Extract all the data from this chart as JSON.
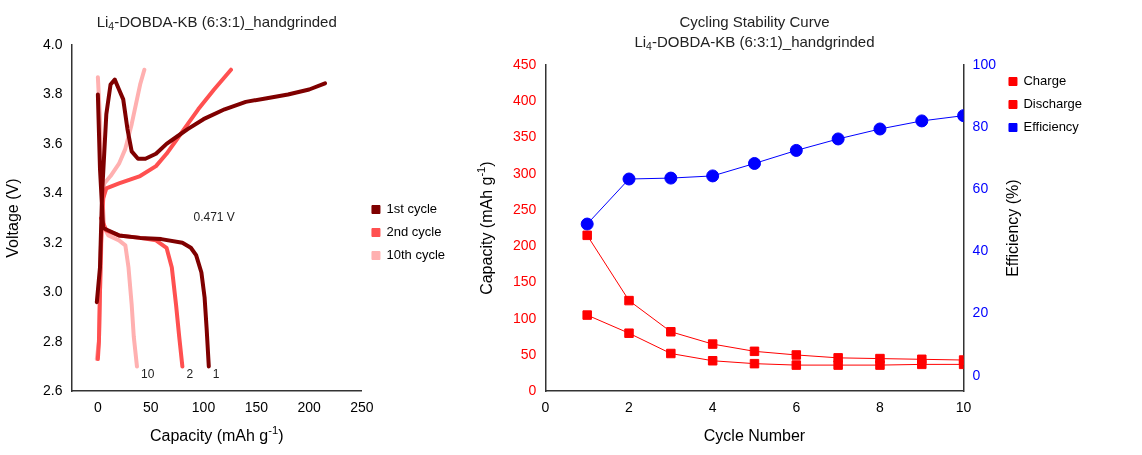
{
  "chart_data": [
    {
      "type": "line",
      "title": "Li$_{4}$-DOBDA-KB (6:3:1)_handgrinded",
      "xlabel": "Capacity (mAh g$^{-1}$)",
      "ylabel": "Voltage (V)",
      "xlim": [
        -25,
        250
      ],
      "xticks": [
        0,
        50,
        100,
        150,
        200,
        250
      ],
      "ylim": [
        2.6,
        4.0
      ],
      "yticks": [
        2.6,
        2.8,
        {
          "value": 3,
          "label": "3.0"
        },
        3.2,
        3.4,
        3.6,
        3.8,
        {
          "value": 4,
          "label": "4.0"
        }
      ],
      "grid": false,
      "legend": "right",
      "line_style": "solid",
      "annotations": [
        "0.471 V",
        "1",
        "2",
        "10"
      ],
      "series": [
        {
          "name": "1st cycle",
          "color": "#7f0000",
          "x": [
            -1,
            2,
            4,
            8,
            12,
            16,
            20,
            24,
            28,
            32,
            38,
            45,
            55,
            65,
            75,
            85,
            100,
            120,
            140,
            160,
            180,
            200,
            215,
            null,
            0,
            2,
            5,
            10,
            20,
            40,
            60,
            80,
            88,
            93,
            98,
            101,
            103,
            105
          ],
          "values": [
            2.96,
            3.1,
            3.4,
            3.72,
            3.84,
            3.86,
            3.82,
            3.78,
            3.66,
            3.57,
            3.54,
            3.54,
            3.56,
            3.6,
            3.63,
            3.66,
            3.7,
            3.74,
            3.77,
            3.785,
            3.8,
            3.82,
            3.845,
            null,
            3.8,
            3.5,
            3.26,
            3.25,
            3.23,
            3.22,
            3.215,
            3.2,
            3.18,
            3.15,
            3.08,
            2.98,
            2.85,
            2.7
          ]
        },
        {
          "name": "2nd cycle",
          "color": "#ff5050",
          "x": [
            0,
            1,
            2,
            3,
            5,
            8,
            20,
            40,
            55,
            65,
            75,
            85,
            95,
            110,
            126,
            null,
            3,
            8,
            20,
            40,
            55,
            65,
            70,
            74,
            77,
            80
          ],
          "values": [
            2.73,
            2.8,
            3.0,
            3.2,
            3.38,
            3.42,
            3.44,
            3.47,
            3.51,
            3.56,
            3.62,
            3.68,
            3.74,
            3.82,
            3.9,
            null,
            3.3,
            3.25,
            3.23,
            3.22,
            3.21,
            3.18,
            3.1,
            2.95,
            2.82,
            2.7
          ]
        },
        {
          "name": "10th cycle",
          "color": "#ffb0b0",
          "x": [
            -1,
            1,
            2,
            4,
            6,
            12,
            20,
            26,
            32,
            36,
            40,
            44,
            null,
            0,
            2,
            4,
            6,
            10,
            20,
            26,
            29,
            32,
            34,
            37
          ],
          "values": [
            2.73,
            2.8,
            3.0,
            3.3,
            3.44,
            3.47,
            3.52,
            3.58,
            3.68,
            3.76,
            3.84,
            3.9,
            null,
            3.87,
            3.7,
            3.4,
            3.26,
            3.23,
            3.21,
            3.19,
            3.1,
            2.95,
            2.82,
            2.7
          ]
        }
      ]
    },
    {
      "type": "line",
      "title": "Cycling Stability Curve",
      "subtitle": "Li$_{4}$-DOBDA-KB (6:3:1)_handgrinded",
      "xlabel": "Cycle Number",
      "ylabel": "Capacity (mAh g$^{-1}$)",
      "y2label": "Efficiency (%)",
      "xlim": [
        0,
        10
      ],
      "xticks": [
        0,
        2,
        4,
        6,
        8,
        10
      ],
      "ylim": [
        0,
        450
      ],
      "yticks": [
        0,
        50,
        100,
        150,
        200,
        250,
        300,
        350,
        400,
        450
      ],
      "y2lim": [
        -5,
        100
      ],
      "y2ticks": [
        0,
        20,
        40,
        60,
        80,
        100
      ],
      "grid": false,
      "legend": "top right",
      "line_style": "solid",
      "x": [
        1,
        2,
        3,
        4,
        5,
        6,
        7,
        8,
        9,
        10
      ],
      "series": [
        {
          "name": "Charge",
          "color": "#ff0000",
          "marker": "square",
          "values": [
            215,
            125,
            82,
            65,
            55,
            50,
            46,
            45,
            44,
            43
          ]
        },
        {
          "name": "Discharge",
          "color": "#ff0000",
          "marker": "square",
          "values": [
            105,
            80,
            52,
            42,
            38,
            36,
            36,
            36,
            37,
            37
          ]
        },
        {
          "name": "Efficiency",
          "color": "#0000ff",
          "marker": "circle",
          "axis": "y2",
          "values": [
            48.8,
            63.3,
            63.6,
            64.3,
            68.3,
            72.5,
            76.2,
            79.4,
            82.0,
            83.7
          ]
        }
      ]
    }
  ]
}
